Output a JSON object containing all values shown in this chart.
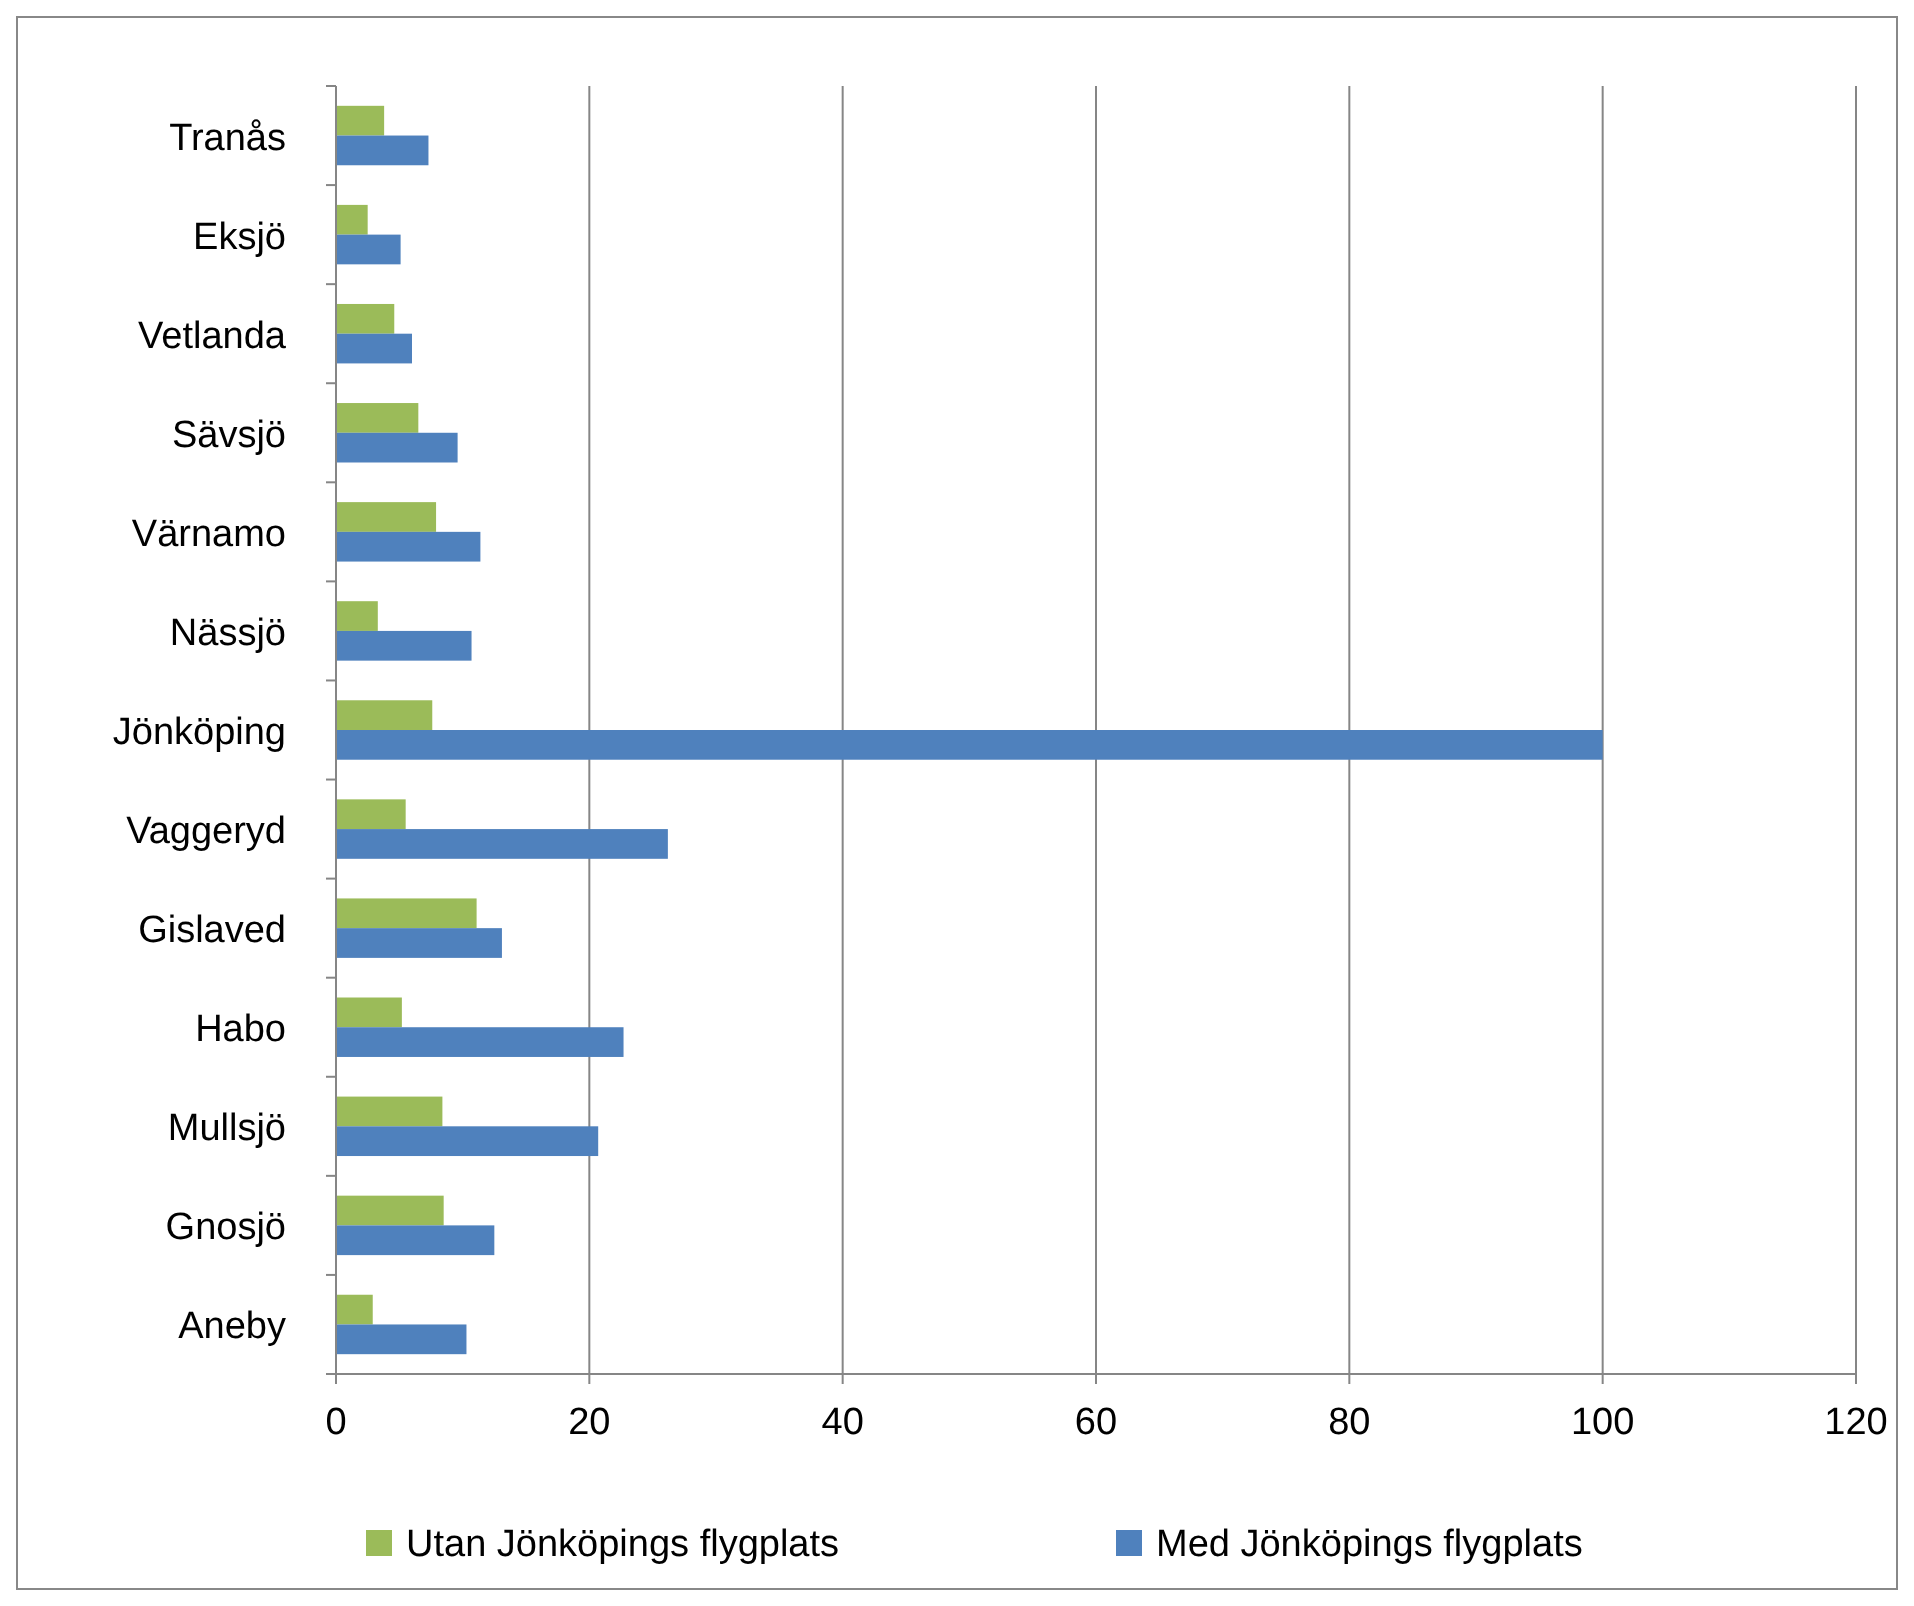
{
  "chart_data": {
    "type": "bar",
    "orientation": "horizontal",
    "categories": [
      "Tranås",
      "Eksjö",
      "Vetlanda",
      "Sävsjö",
      "Värnamo",
      "Nässjö",
      "Jönköping",
      "Vaggeryd",
      "Gislaved",
      "Habo",
      "Mullsjö",
      "Gnosjö",
      "Aneby"
    ],
    "series": [
      {
        "name": "Utan Jönköpings flygplats",
        "color": "#9bbb59",
        "values": [
          3.8,
          2.5,
          4.6,
          6.5,
          7.9,
          3.3,
          7.6,
          5.5,
          11.1,
          5.2,
          8.4,
          8.5,
          2.9
        ]
      },
      {
        "name": "Med Jönköpings flygplats",
        "color": "#4f81bd",
        "values": [
          7.3,
          5.1,
          6.0,
          9.6,
          11.4,
          10.7,
          100,
          26.2,
          13.1,
          22.7,
          20.7,
          12.5,
          10.3
        ]
      }
    ],
    "xlim": [
      0,
      120
    ],
    "xticks": [
      0,
      20,
      40,
      60,
      80,
      100,
      120
    ],
    "grid": "x",
    "legend": "bottom"
  }
}
